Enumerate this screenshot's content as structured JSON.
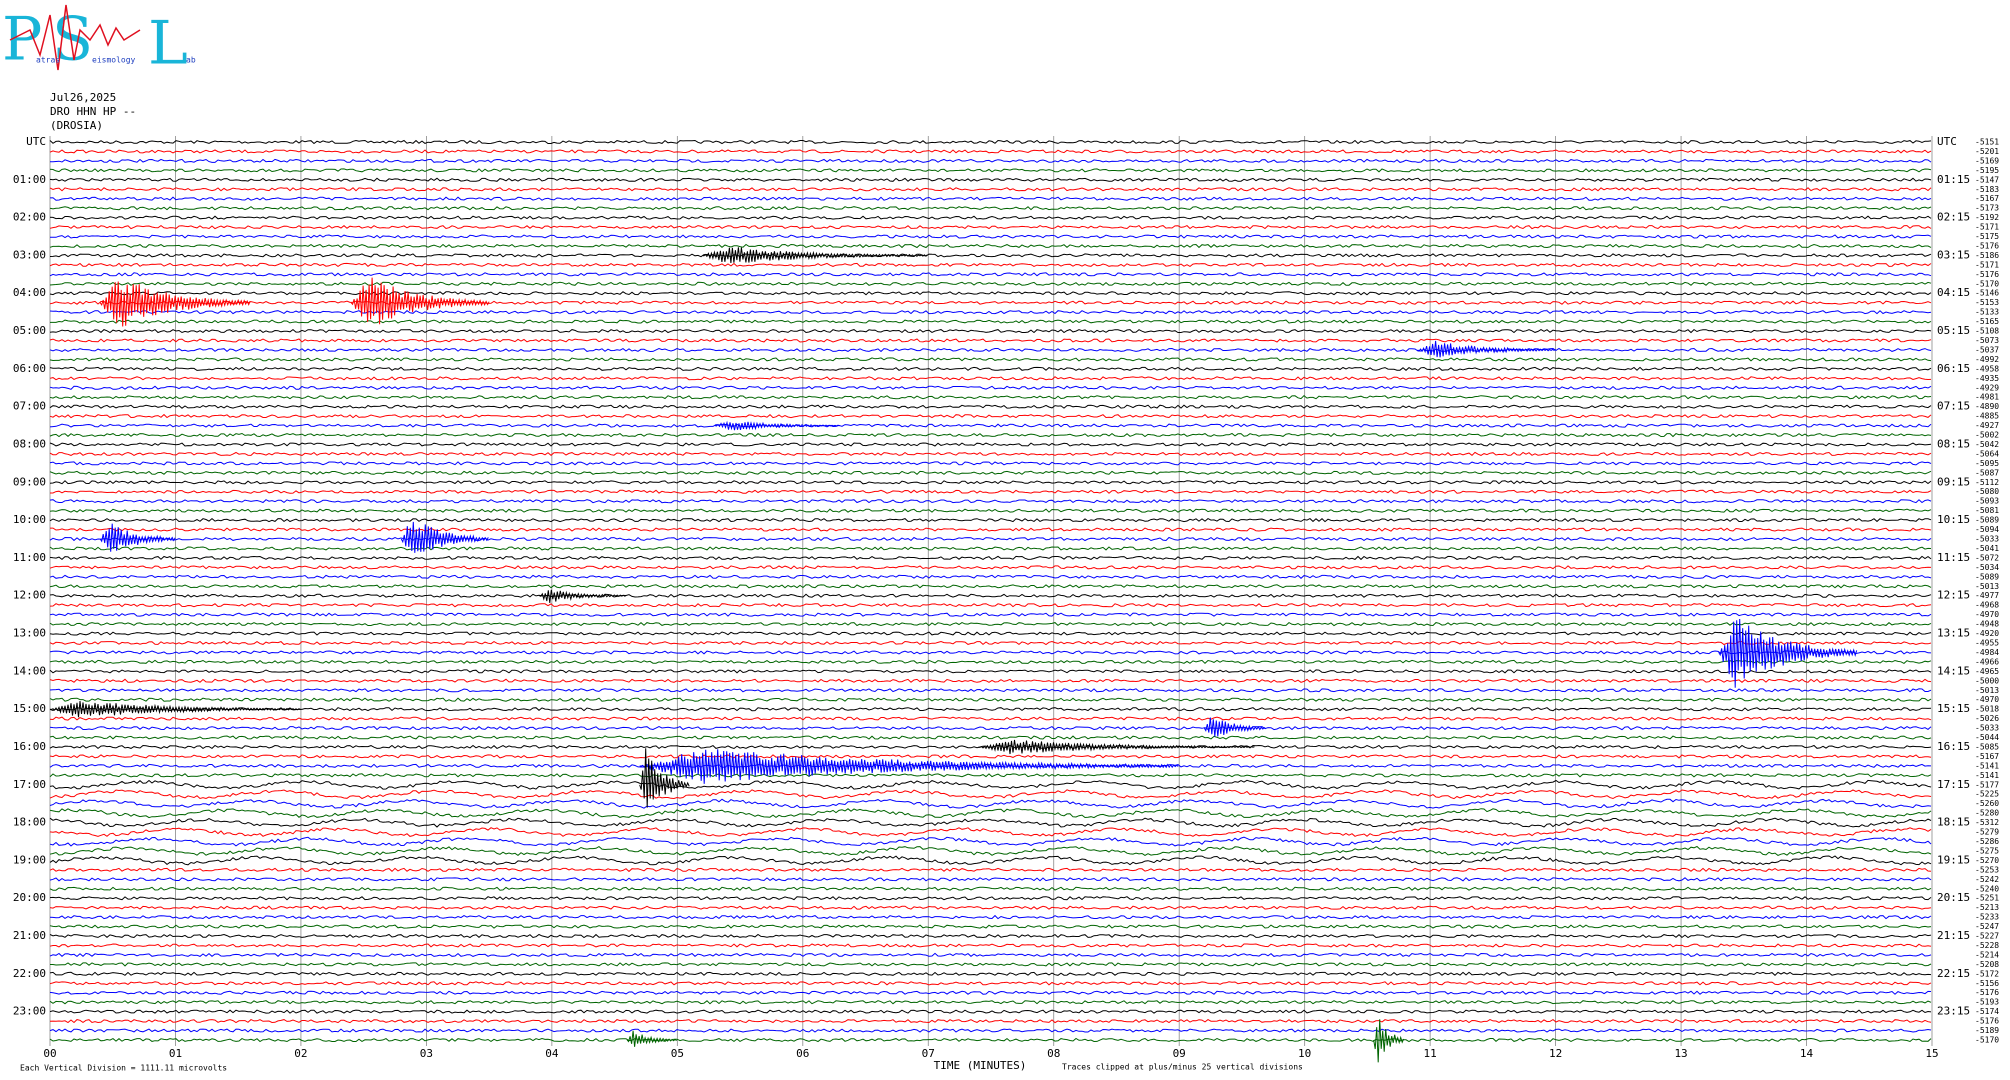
{
  "chart_data": {
    "type": "helicorder",
    "logo": {
      "letters": [
        "P",
        "S",
        "L"
      ],
      "words": [
        "atras",
        "eismology",
        "ab"
      ]
    },
    "date": "Jul26,2025",
    "station": "DRO HHN HP --",
    "site": "(DROSIA)",
    "left_labels": [
      "UTC",
      "01:00",
      "02:00",
      "03:00",
      "04:00",
      "05:00",
      "06:00",
      "07:00",
      "08:00",
      "09:00",
      "10:00",
      "11:00",
      "12:00",
      "13:00",
      "14:00",
      "15:00",
      "16:00",
      "17:00",
      "18:00",
      "19:00",
      "20:00",
      "21:00",
      "22:00",
      "23:00"
    ],
    "right_labels": [
      "UTC",
      "01:15",
      "02:15",
      "03:15",
      "04:15",
      "05:15",
      "06:15",
      "07:15",
      "08:15",
      "09:15",
      "10:15",
      "11:15",
      "12:15",
      "13:15",
      "14:15",
      "15:15",
      "16:15",
      "17:15",
      "18:15",
      "19:15",
      "20:15",
      "21:15",
      "22:15",
      "23:15"
    ],
    "colors": [
      "#000000",
      "#ff0000",
      "#0000ff",
      "#006400"
    ],
    "offsets": [
      -5151,
      -5201,
      -5169,
      -5195,
      -5147,
      -5183,
      -5167,
      -5173,
      -5192,
      -5171,
      -5175,
      -5176,
      -5186,
      -5171,
      -5176,
      -5170,
      -5146,
      -5153,
      -5133,
      -5165,
      -5108,
      -5073,
      -5037,
      -4992,
      -4958,
      -4935,
      -4929,
      -4981,
      -4890,
      -4885,
      -4927,
      -5002,
      -5042,
      -5064,
      -5095,
      -5087,
      -5112,
      -5080,
      -5093,
      -5081,
      -5089,
      -5094,
      -5033,
      -5041,
      -5072,
      -5034,
      -5089,
      -5013,
      -4977,
      -4968,
      -4970,
      -4948,
      -4920,
      -4955,
      -4984,
      -4966,
      -4965,
      -5000,
      -5013,
      -4970,
      -5018,
      -5026,
      -5033,
      -5044,
      -5085,
      -5167,
      -5141,
      -5141,
      -5177,
      -5225,
      -5260,
      -5280,
      -5312,
      -5279,
      -5286,
      -5275,
      -5270,
      -5253,
      -5242,
      -5240,
      -5251,
      -5213,
      -5233,
      -5247,
      -5227,
      -5228,
      -5214,
      -5208,
      -5172,
      -5156,
      -5176,
      -5193,
      -5174,
      -5176,
      -5189,
      -5170
    ],
    "events": [
      {
        "row": 12,
        "start": 5.2,
        "end": 7.0,
        "amplitude": 1
      },
      {
        "row": 17,
        "start": 0.4,
        "end": 1.6,
        "amplitude": 3
      },
      {
        "row": 17,
        "start": 2.4,
        "end": 3.5,
        "amplitude": 3
      },
      {
        "row": 22,
        "start": 10.9,
        "end": 12.0,
        "amplitude": 1
      },
      {
        "row": 30,
        "start": 5.3,
        "end": 6.3,
        "amplitude": 0.6
      },
      {
        "row": 42,
        "start": 0.4,
        "end": 1.0,
        "amplitude": 2
      },
      {
        "row": 42,
        "start": 2.8,
        "end": 3.5,
        "amplitude": 2.5
      },
      {
        "row": 48,
        "start": 3.9,
        "end": 4.6,
        "amplitude": 0.8
      },
      {
        "row": 54,
        "start": 13.3,
        "end": 14.4,
        "amplitude": 4
      },
      {
        "row": 60,
        "start": 0.0,
        "end": 2.0,
        "amplitude": 1
      },
      {
        "row": 62,
        "start": 9.2,
        "end": 9.7,
        "amplitude": 1.5
      },
      {
        "row": 64,
        "start": 7.4,
        "end": 9.6,
        "amplitude": 0.8
      },
      {
        "row": 66,
        "start": 4.7,
        "end": 9.0,
        "amplitude": 2
      },
      {
        "row": 68,
        "start": 4.7,
        "end": 5.1,
        "amplitude": 4
      },
      {
        "row": 95,
        "start": 4.6,
        "end": 5.0,
        "amplitude": 1
      },
      {
        "row": 95,
        "start": 10.55,
        "end": 10.8,
        "amplitude": 3
      }
    ],
    "xlim": [
      0,
      15
    ],
    "xticks": [
      {
        "value": 0,
        "label": "00"
      },
      {
        "value": 1,
        "label": "01"
      },
      {
        "value": 2,
        "label": "02"
      },
      {
        "value": 3,
        "label": "03"
      },
      {
        "value": 4,
        "label": "04"
      },
      {
        "value": 5,
        "label": "05"
      },
      {
        "value": 6,
        "label": "06"
      },
      {
        "value": 7,
        "label": "07"
      },
      {
        "value": 8,
        "label": "08"
      },
      {
        "value": 9,
        "label": "09"
      },
      10,
      11,
      12,
      13,
      14,
      15
    ],
    "xlabel": "TIME (MINUTES)",
    "scale_note": "Each Vertical Division = 1111.11 microvolts",
    "clip_note": "Traces clipped at plus/minus 25 vertical divisions"
  }
}
